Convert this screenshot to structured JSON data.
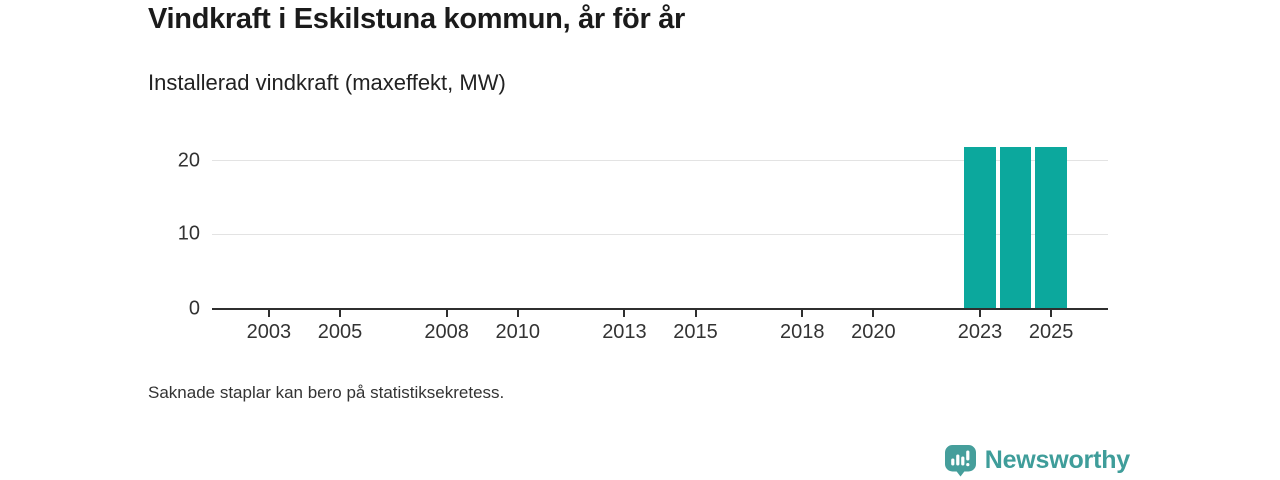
{
  "header": {
    "title": "Vindkraft i Eskilstuna kommun, år för år",
    "subtitle": "Installerad vindkraft (maxeffekt, MW)"
  },
  "footer": {
    "note": "Saknade staplar kan bero på statistiksekretess."
  },
  "brand": {
    "name": "Newsworthy",
    "icon": "newsworthy-chart-bubble-icon",
    "color": "#3f9d9a"
  },
  "colors": {
    "bar": "#0ca89d",
    "axis": "#2f2f2f",
    "grid": "#e3e3e3",
    "tick_text": "#333333"
  },
  "chart_data": {
    "type": "bar",
    "title": "Vindkraft i Eskilstuna kommun, år för år",
    "subtitle": "Installerad vindkraft (maxeffekt, MW)",
    "xlabel": "",
    "ylabel": "Installerad vindkraft (maxeffekt, MW)",
    "x": [
      2023,
      2024,
      2025
    ],
    "values": [
      21.8,
      21.8,
      21.8
    ],
    "unit": "MW",
    "x_ticks": [
      2003,
      2005,
      2008,
      2010,
      2013,
      2015,
      2018,
      2020,
      2023,
      2025
    ],
    "y_ticks": [
      0,
      10,
      20
    ],
    "xlim": [
      2001.4,
      2026.6
    ],
    "ylim": [
      0,
      22.8
    ],
    "grid": "horizontal",
    "legend": "none",
    "bar_width_years": 0.88,
    "note": "Saknade staplar kan bero på statistiksekretess."
  }
}
